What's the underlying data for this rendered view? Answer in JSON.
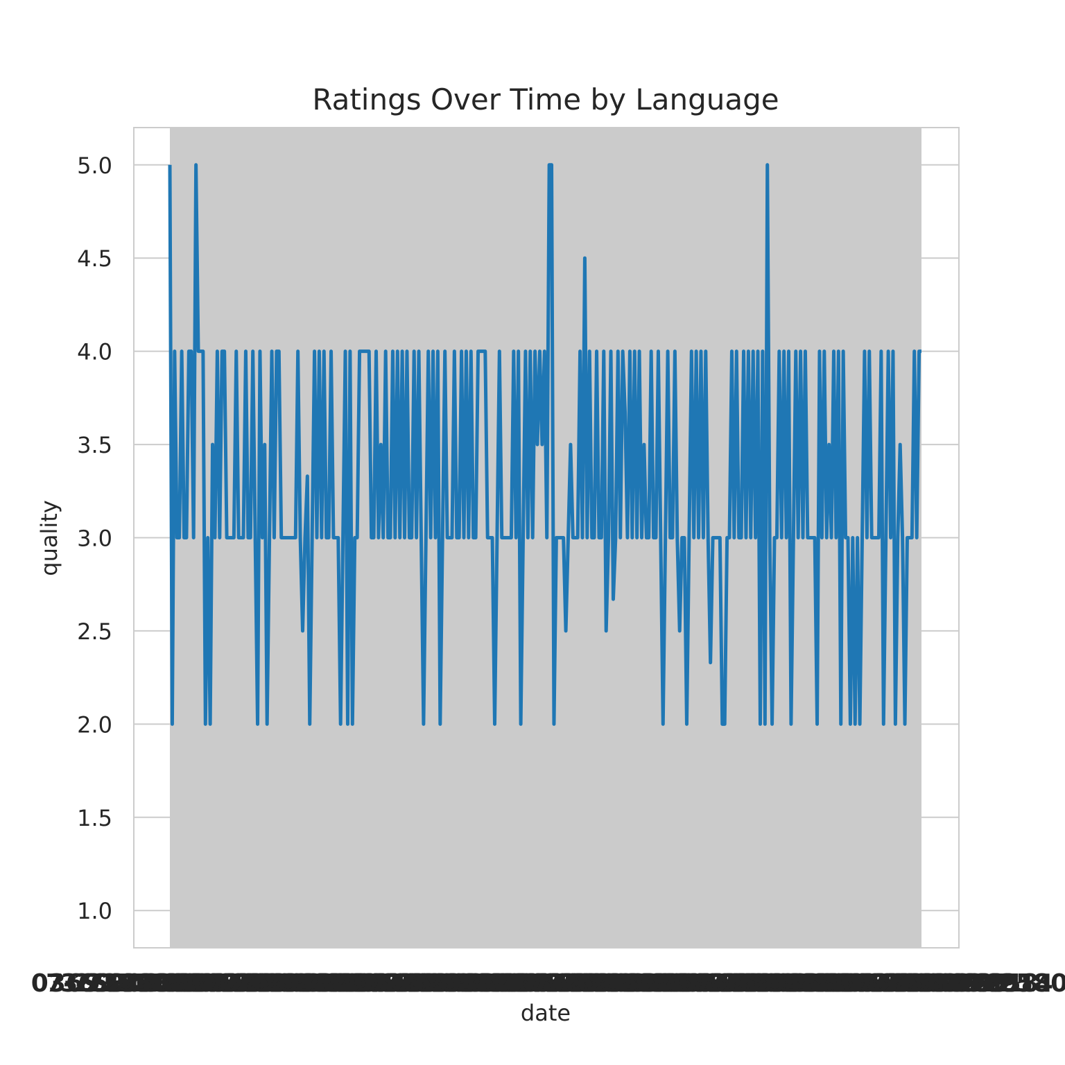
{
  "chart_data": {
    "type": "line",
    "title": "Ratings Over Time by Language",
    "xlabel": "date",
    "ylabel": "quality",
    "ylim": [
      0.8,
      5.2
    ],
    "yticks": [
      "1.0",
      "1.5",
      "2.0",
      "2.5",
      "3.0",
      "3.5",
      "4.0",
      "4.5",
      "5.0"
    ],
    "ytick_values": [
      1.0,
      1.5,
      2.0,
      2.5,
      3.0,
      3.5,
      4.0,
      4.5,
      5.0
    ],
    "grid": true,
    "x_tick_labels": "overlapping and illegible",
    "series": [
      {
        "color": "#1f77b4",
        "values": [
          5,
          2,
          4,
          3,
          3,
          4,
          3,
          3,
          4,
          4,
          3,
          5,
          4,
          4,
          4,
          2,
          3,
          2,
          3.5,
          3,
          4,
          3,
          4,
          4,
          3,
          3,
          3,
          3,
          4,
          3,
          3,
          3,
          4,
          3,
          3,
          4,
          3,
          2,
          4,
          3,
          3.5,
          2,
          3,
          4,
          3,
          4,
          4,
          3,
          3,
          3,
          3,
          3,
          3,
          3,
          4,
          3,
          2.5,
          3,
          3.33,
          2,
          3,
          4,
          3,
          4,
          3,
          4,
          3,
          3,
          4,
          3,
          3,
          3,
          2,
          3,
          4,
          2,
          4,
          2,
          3,
          3,
          4,
          4,
          4,
          4,
          4,
          3,
          3,
          4,
          3,
          3.5,
          3,
          4,
          3,
          3,
          4,
          3,
          4,
          3,
          4,
          3,
          4,
          3,
          3,
          4,
          3,
          4,
          3,
          2,
          3,
          4,
          3,
          4,
          3,
          4,
          2,
          3,
          4,
          3,
          3,
          3,
          4,
          3,
          3,
          4,
          3,
          4,
          3,
          4,
          3,
          3,
          4,
          4,
          4,
          4,
          3,
          3,
          3,
          2,
          3,
          4,
          3,
          3,
          3,
          3,
          3,
          4,
          3,
          4,
          2,
          3,
          4,
          3,
          4,
          3,
          4,
          3.5,
          4,
          3.5,
          4,
          3,
          5,
          5,
          2,
          3,
          3,
          3,
          3,
          2.5,
          3,
          3.5,
          3,
          3,
          3,
          4,
          3,
          4.5,
          3,
          4,
          3,
          3,
          4,
          3,
          3,
          4,
          2.5,
          3,
          4,
          2.67,
          3,
          4,
          3,
          4,
          3.67,
          3,
          4,
          3,
          4,
          3,
          4,
          3,
          3.5,
          3,
          3,
          4,
          3,
          3,
          4,
          3,
          2,
          3,
          4,
          3,
          3,
          4,
          3,
          2.5,
          3,
          3,
          2,
          3,
          4,
          3,
          4,
          3,
          4,
          3,
          4,
          3,
          2.33,
          3,
          3,
          3,
          3,
          2,
          2,
          3,
          3,
          4,
          3,
          4,
          3,
          3,
          4,
          3,
          4,
          3,
          4,
          3,
          4,
          2,
          4,
          2,
          5,
          3,
          2,
          3,
          3,
          4,
          3,
          4,
          3,
          4,
          2,
          3,
          4,
          3,
          4,
          3,
          4,
          3,
          3,
          3,
          3,
          2,
          4,
          3,
          4,
          3,
          3.5,
          3,
          4,
          3,
          4,
          2,
          4,
          3,
          3,
          2,
          3,
          2,
          3,
          2,
          3,
          4,
          3,
          4,
          3,
          3,
          3,
          3,
          4,
          2,
          3,
          4,
          3,
          4,
          2,
          3,
          3.5,
          3,
          2,
          3,
          3,
          3,
          4,
          3,
          4,
          4
        ]
      }
    ]
  }
}
